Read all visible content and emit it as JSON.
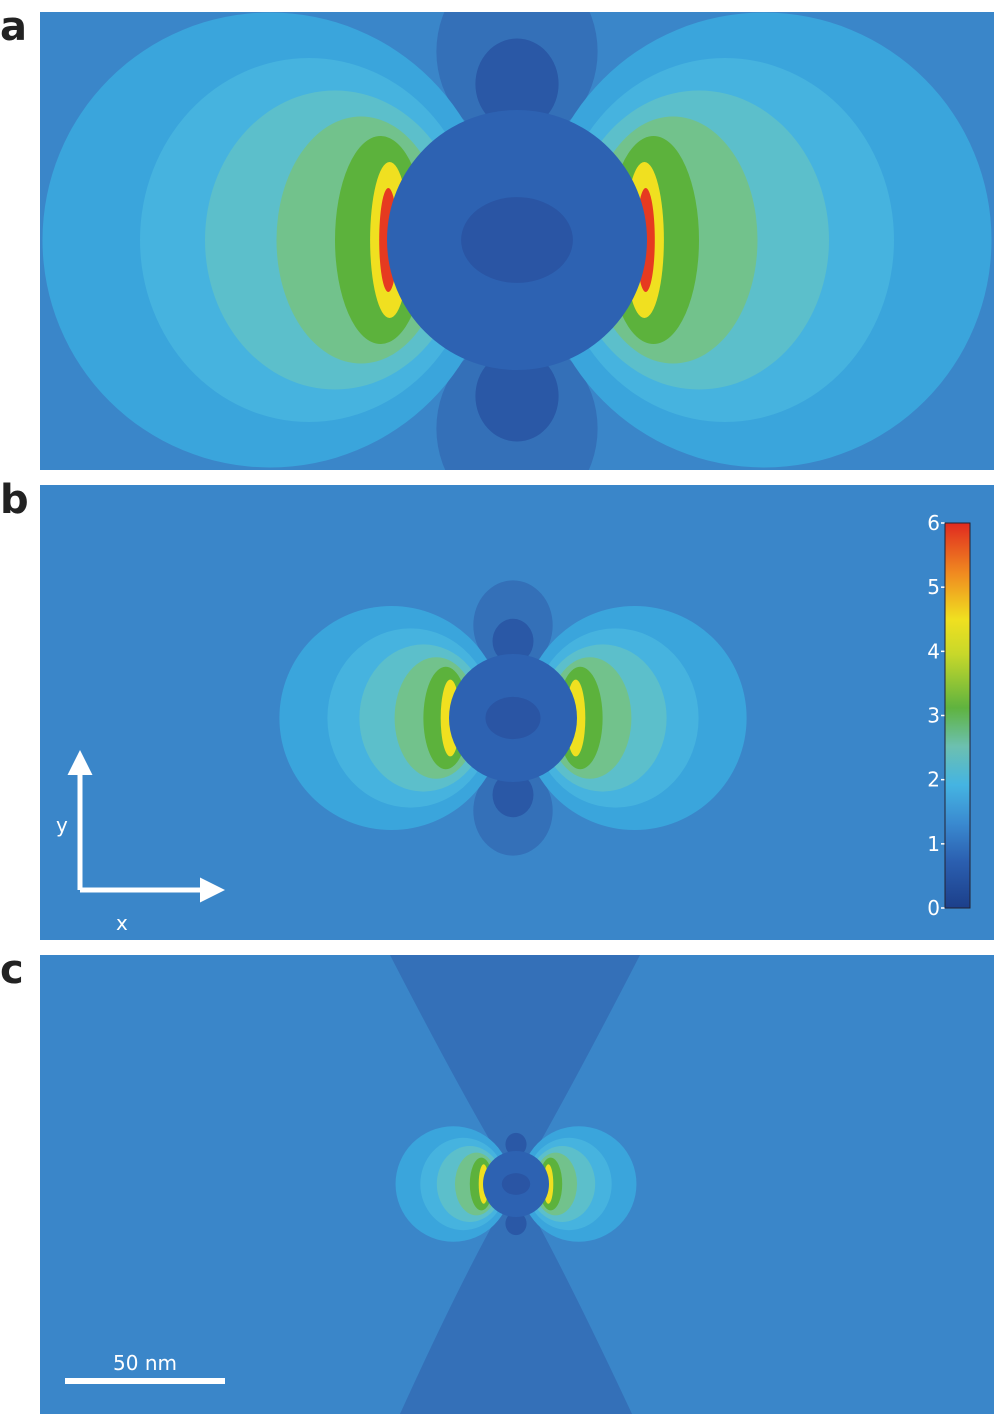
{
  "panels": [
    {
      "label": "a"
    },
    {
      "label": "b"
    },
    {
      "label": "c"
    }
  ],
  "colorbar": {
    "lim": [
      0,
      6
    ],
    "ticks": [
      0,
      1,
      2,
      3,
      4,
      5,
      6
    ]
  },
  "axes": {
    "x": "x",
    "y": "y"
  },
  "scale_bar": {
    "label": "50 nm"
  }
}
